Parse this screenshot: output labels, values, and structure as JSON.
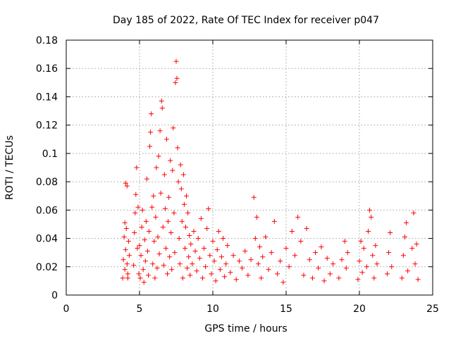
{
  "chart_data": {
    "type": "scatter",
    "title": "Day 185 of 2022, Rate Of TEC Index for receiver p047",
    "xlabel": "GPS time / hours",
    "ylabel": "ROTI / TECUs",
    "xlim": [
      0,
      25
    ],
    "ylim": [
      0,
      0.18
    ],
    "xticks": [
      0,
      5,
      10,
      15,
      20,
      25
    ],
    "xtick_labels": [
      "0",
      "5",
      "10",
      "15",
      "20",
      "25"
    ],
    "yticks": [
      0,
      0.02,
      0.04,
      0.06,
      0.08,
      0.1,
      0.12,
      0.14,
      0.16,
      0.18
    ],
    "ytick_labels": [
      "0",
      "0.02",
      "0.04",
      "0.06",
      "0.08",
      "0.1",
      "0.12",
      "0.14",
      "0.16",
      "0.18"
    ],
    "grid": true,
    "marker": "+",
    "colors": {
      "points": "#ff0000"
    },
    "series": [
      {
        "name": "",
        "points": [
          [
            3.85,
            0.012
          ],
          [
            3.9,
            0.025
          ],
          [
            3.95,
            0.041
          ],
          [
            4.0,
            0.018
          ],
          [
            4.05,
            0.032
          ],
          [
            4.1,
            0.047
          ],
          [
            4.15,
            0.022
          ],
          [
            4.2,
            0.015
          ],
          [
            4.25,
            0.038
          ],
          [
            4.0,
            0.051
          ],
          [
            4.05,
            0.079
          ],
          [
            4.15,
            0.077
          ],
          [
            4.2,
            0.012
          ],
          [
            4.3,
            0.028
          ],
          [
            4.6,
            0.021
          ],
          [
            4.65,
            0.044
          ],
          [
            4.7,
            0.058
          ],
          [
            4.75,
            0.071
          ],
          [
            4.8,
            0.09
          ],
          [
            4.85,
            0.033
          ],
          [
            4.9,
            0.062
          ],
          [
            4.95,
            0.015
          ],
          [
            5.0,
            0.035
          ],
          [
            5.05,
            0.012
          ],
          [
            5.1,
            0.028
          ],
          [
            5.15,
            0.048
          ],
          [
            5.2,
            0.06
          ],
          [
            5.25,
            0.018
          ],
          [
            5.3,
            0.009
          ],
          [
            5.35,
            0.039
          ],
          [
            5.4,
            0.024
          ],
          [
            5.45,
            0.052
          ],
          [
            5.5,
            0.082
          ],
          [
            5.55,
            0.031
          ],
          [
            5.6,
            0.014
          ],
          [
            5.65,
            0.045
          ],
          [
            5.7,
            0.105
          ],
          [
            5.75,
            0.115
          ],
          [
            5.8,
            0.128
          ],
          [
            5.85,
            0.062
          ],
          [
            5.9,
            0.022
          ],
          [
            5.95,
            0.07
          ],
          [
            6.0,
            0.038
          ],
          [
            6.05,
            0.012
          ],
          [
            6.1,
            0.055
          ],
          [
            6.15,
            0.09
          ],
          [
            6.2,
            0.019
          ],
          [
            6.25,
            0.041
          ],
          [
            6.3,
            0.098
          ],
          [
            6.35,
            0.029
          ],
          [
            6.4,
            0.116
          ],
          [
            6.45,
            0.072
          ],
          [
            6.5,
            0.137
          ],
          [
            6.55,
            0.132
          ],
          [
            6.6,
            0.048
          ],
          [
            6.65,
            0.021
          ],
          [
            6.7,
            0.085
          ],
          [
            6.75,
            0.061
          ],
          [
            6.8,
            0.033
          ],
          [
            6.85,
            0.11
          ],
          [
            6.9,
            0.015
          ],
          [
            6.95,
            0.052
          ],
          [
            7.0,
            0.069
          ],
          [
            7.05,
            0.027
          ],
          [
            7.1,
            0.095
          ],
          [
            7.15,
            0.044
          ],
          [
            7.2,
            0.018
          ],
          [
            7.25,
            0.088
          ],
          [
            7.3,
            0.118
          ],
          [
            7.35,
            0.058
          ],
          [
            7.4,
            0.03
          ],
          [
            7.45,
            0.15
          ],
          [
            7.5,
            0.165
          ],
          [
            7.55,
            0.153
          ],
          [
            7.6,
            0.104
          ],
          [
            7.65,
            0.08
          ],
          [
            7.7,
            0.04
          ],
          [
            7.75,
            0.022
          ],
          [
            7.8,
            0.092
          ],
          [
            7.85,
            0.075
          ],
          [
            7.9,
            0.052
          ],
          [
            7.95,
            0.012
          ],
          [
            8.0,
            0.085
          ],
          [
            8.05,
            0.064
          ],
          [
            8.1,
            0.033
          ],
          [
            8.15,
            0.048
          ],
          [
            8.2,
            0.07
          ],
          [
            8.25,
            0.019
          ],
          [
            8.3,
            0.058
          ],
          [
            8.35,
            0.027
          ],
          [
            8.4,
            0.042
          ],
          [
            8.45,
            0.014
          ],
          [
            8.5,
            0.036
          ],
          [
            8.6,
            0.022
          ],
          [
            8.7,
            0.045
          ],
          [
            8.8,
            0.031
          ],
          [
            8.9,
            0.017
          ],
          [
            9.0,
            0.04
          ],
          [
            9.1,
            0.026
          ],
          [
            9.2,
            0.054
          ],
          [
            9.3,
            0.012
          ],
          [
            9.4,
            0.033
          ],
          [
            9.5,
            0.02
          ],
          [
            9.6,
            0.047
          ],
          [
            9.7,
            0.061
          ],
          [
            9.8,
            0.028
          ],
          [
            9.9,
            0.015
          ],
          [
            10.0,
            0.038
          ],
          [
            10.1,
            0.024
          ],
          [
            10.2,
            0.01
          ],
          [
            10.3,
            0.032
          ],
          [
            10.4,
            0.045
          ],
          [
            10.5,
            0.018
          ],
          [
            10.6,
            0.027
          ],
          [
            10.7,
            0.04
          ],
          [
            10.8,
            0.013
          ],
          [
            10.9,
            0.022
          ],
          [
            11.0,
            0.035
          ],
          [
            11.2,
            0.016
          ],
          [
            11.4,
            0.028
          ],
          [
            11.6,
            0.011
          ],
          [
            11.8,
            0.024
          ],
          [
            12.0,
            0.019
          ],
          [
            12.2,
            0.031
          ],
          [
            12.4,
            0.014
          ],
          [
            12.6,
            0.025
          ],
          [
            12.8,
            0.069
          ],
          [
            12.9,
            0.04
          ],
          [
            13.0,
            0.055
          ],
          [
            13.1,
            0.022
          ],
          [
            13.2,
            0.034
          ],
          [
            13.3,
            0.012
          ],
          [
            13.4,
            0.027
          ],
          [
            13.6,
            0.041
          ],
          [
            13.8,
            0.018
          ],
          [
            14.0,
            0.03
          ],
          [
            14.2,
            0.052
          ],
          [
            14.4,
            0.015
          ],
          [
            14.6,
            0.024
          ],
          [
            14.8,
            0.009
          ],
          [
            15.0,
            0.033
          ],
          [
            15.2,
            0.02
          ],
          [
            15.4,
            0.045
          ],
          [
            15.6,
            0.028
          ],
          [
            15.8,
            0.055
          ],
          [
            16.0,
            0.038
          ],
          [
            16.2,
            0.014
          ],
          [
            16.4,
            0.047
          ],
          [
            16.6,
            0.025
          ],
          [
            16.8,
            0.012
          ],
          [
            17.0,
            0.03
          ],
          [
            17.2,
            0.019
          ],
          [
            17.4,
            0.034
          ],
          [
            17.6,
            0.01
          ],
          [
            17.8,
            0.026
          ],
          [
            18.0,
            0.015
          ],
          [
            18.2,
            0.022
          ],
          [
            18.6,
            0.012
          ],
          [
            18.8,
            0.025
          ],
          [
            19.0,
            0.038
          ],
          [
            19.1,
            0.019
          ],
          [
            19.2,
            0.03
          ],
          [
            19.9,
            0.011
          ],
          [
            20.0,
            0.024
          ],
          [
            20.1,
            0.038
          ],
          [
            20.2,
            0.016
          ],
          [
            20.3,
            0.033
          ],
          [
            20.5,
            0.02
          ],
          [
            20.6,
            0.045
          ],
          [
            20.7,
            0.06
          ],
          [
            20.8,
            0.055
          ],
          [
            20.9,
            0.028
          ],
          [
            21.0,
            0.012
          ],
          [
            21.1,
            0.035
          ],
          [
            21.2,
            0.022
          ],
          [
            21.9,
            0.015
          ],
          [
            22.0,
            0.03
          ],
          [
            22.1,
            0.044
          ],
          [
            22.2,
            0.02
          ],
          [
            22.9,
            0.012
          ],
          [
            23.0,
            0.028
          ],
          [
            23.1,
            0.041
          ],
          [
            23.2,
            0.051
          ],
          [
            23.3,
            0.017
          ],
          [
            23.6,
            0.033
          ],
          [
            23.7,
            0.058
          ],
          [
            23.8,
            0.022
          ],
          [
            23.9,
            0.036
          ],
          [
            24.0,
            0.011
          ]
        ]
      }
    ]
  }
}
